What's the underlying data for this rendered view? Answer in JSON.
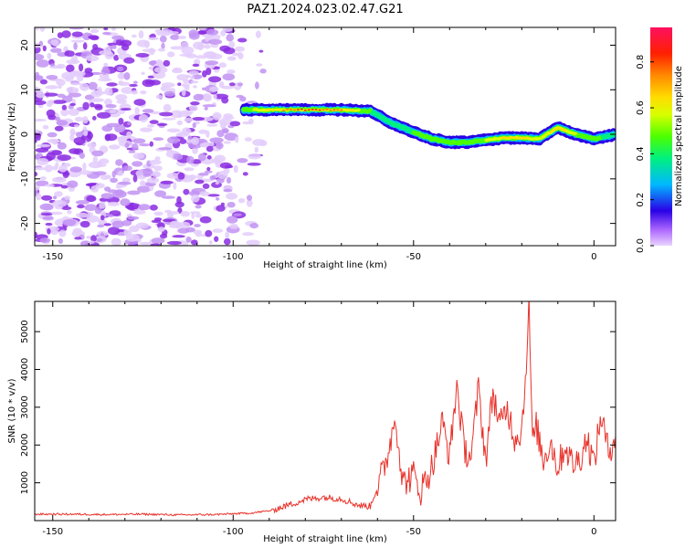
{
  "title": "PAZ1.2024.023.02.47.G21",
  "colors": {
    "snr_line": "#e8322a",
    "speckle_light": "#e3cdfb",
    "speckle_mid": "#c293f3",
    "speckle_dark": "#8a2be2"
  },
  "chart_data": [
    {
      "type": "heatmap",
      "xlabel": "Height of straight line (km)",
      "ylabel": "Frequency (Hz)",
      "xlim": [
        -155,
        6
      ],
      "ylim": [
        -25,
        24
      ],
      "xticks": [
        -150,
        -100,
        -50,
        0
      ],
      "yticks": [
        -20,
        -10,
        0,
        10,
        20
      ],
      "xtick_labels": [
        "-150",
        "-100",
        "-50",
        "0"
      ],
      "ytick_labels": [
        "-20",
        "-10",
        "0",
        "10",
        "20"
      ],
      "noise_region_x": [
        -155,
        -94
      ],
      "ridge": {
        "x": [
          -97,
          -90,
          -80,
          -70,
          -62,
          -56,
          -50,
          -45,
          -40,
          -35,
          -30,
          -25,
          -20,
          -15,
          -10,
          -5,
          0,
          6
        ],
        "freq": [
          5.5,
          5.5,
          5.5,
          5.5,
          5.2,
          2.5,
          0.5,
          -1.0,
          -1.8,
          -1.8,
          -1.3,
          -0.8,
          -0.8,
          -1.0,
          1.5,
          0.0,
          -1.0,
          0.0
        ],
        "amplitude": [
          0.55,
          0.7,
          0.95,
          0.8,
          0.5,
          0.45,
          0.5,
          0.5,
          0.5,
          0.55,
          0.6,
          0.7,
          0.75,
          0.6,
          0.75,
          0.6,
          0.55,
          0.4
        ]
      },
      "colorbar": {
        "label": "Normalized spectral amplitude",
        "range": [
          0.0,
          0.95
        ],
        "ticks": [
          0.0,
          0.2,
          0.4,
          0.6,
          0.8
        ],
        "tick_labels": [
          "0.0",
          "0.2",
          "0.4",
          "0.6",
          "0.8"
        ]
      }
    },
    {
      "type": "line",
      "xlabel": "Height of straight line (km)",
      "ylabel": "SNR (10 * v/v)",
      "xlim": [
        -155,
        6
      ],
      "ylim": [
        0,
        5800
      ],
      "xticks": [
        -150,
        -100,
        -50,
        0
      ],
      "yticks": [
        1000,
        2000,
        3000,
        4000,
        5000
      ],
      "xtick_labels": [
        "-150",
        "-100",
        "-50",
        "0"
      ],
      "ytick_labels": [
        "1000",
        "2000",
        "3000",
        "4000",
        "5000"
      ],
      "series": [
        {
          "x": [
            -155,
            -145,
            -135,
            -125,
            -115,
            -105,
            -100,
            -95,
            -90,
            -85,
            -80,
            -75,
            -70,
            -65,
            -62,
            -60,
            -58,
            -56,
            -55,
            -53,
            -50,
            -48,
            -45,
            -42,
            -40,
            -38,
            -36,
            -34,
            -32,
            -30,
            -28,
            -26,
            -24,
            -22,
            -20,
            -19,
            -18,
            -17,
            -16,
            -14,
            -12,
            -10,
            -8,
            -6,
            -4,
            -2,
            0,
            2,
            4,
            6
          ],
          "y": [
            170,
            170,
            160,
            170,
            150,
            160,
            180,
            200,
            260,
            400,
            560,
            620,
            580,
            400,
            380,
            900,
            1400,
            2300,
            2800,
            1000,
            1200,
            800,
            1400,
            2600,
            1700,
            3600,
            1900,
            1700,
            3500,
            1600,
            3400,
            2500,
            3000,
            2200,
            2400,
            3800,
            5650,
            2000,
            2500,
            1600,
            2100,
            1400,
            2000,
            1500,
            1600,
            2200,
            1500,
            2800,
            1800,
            2300
          ]
        }
      ]
    }
  ]
}
